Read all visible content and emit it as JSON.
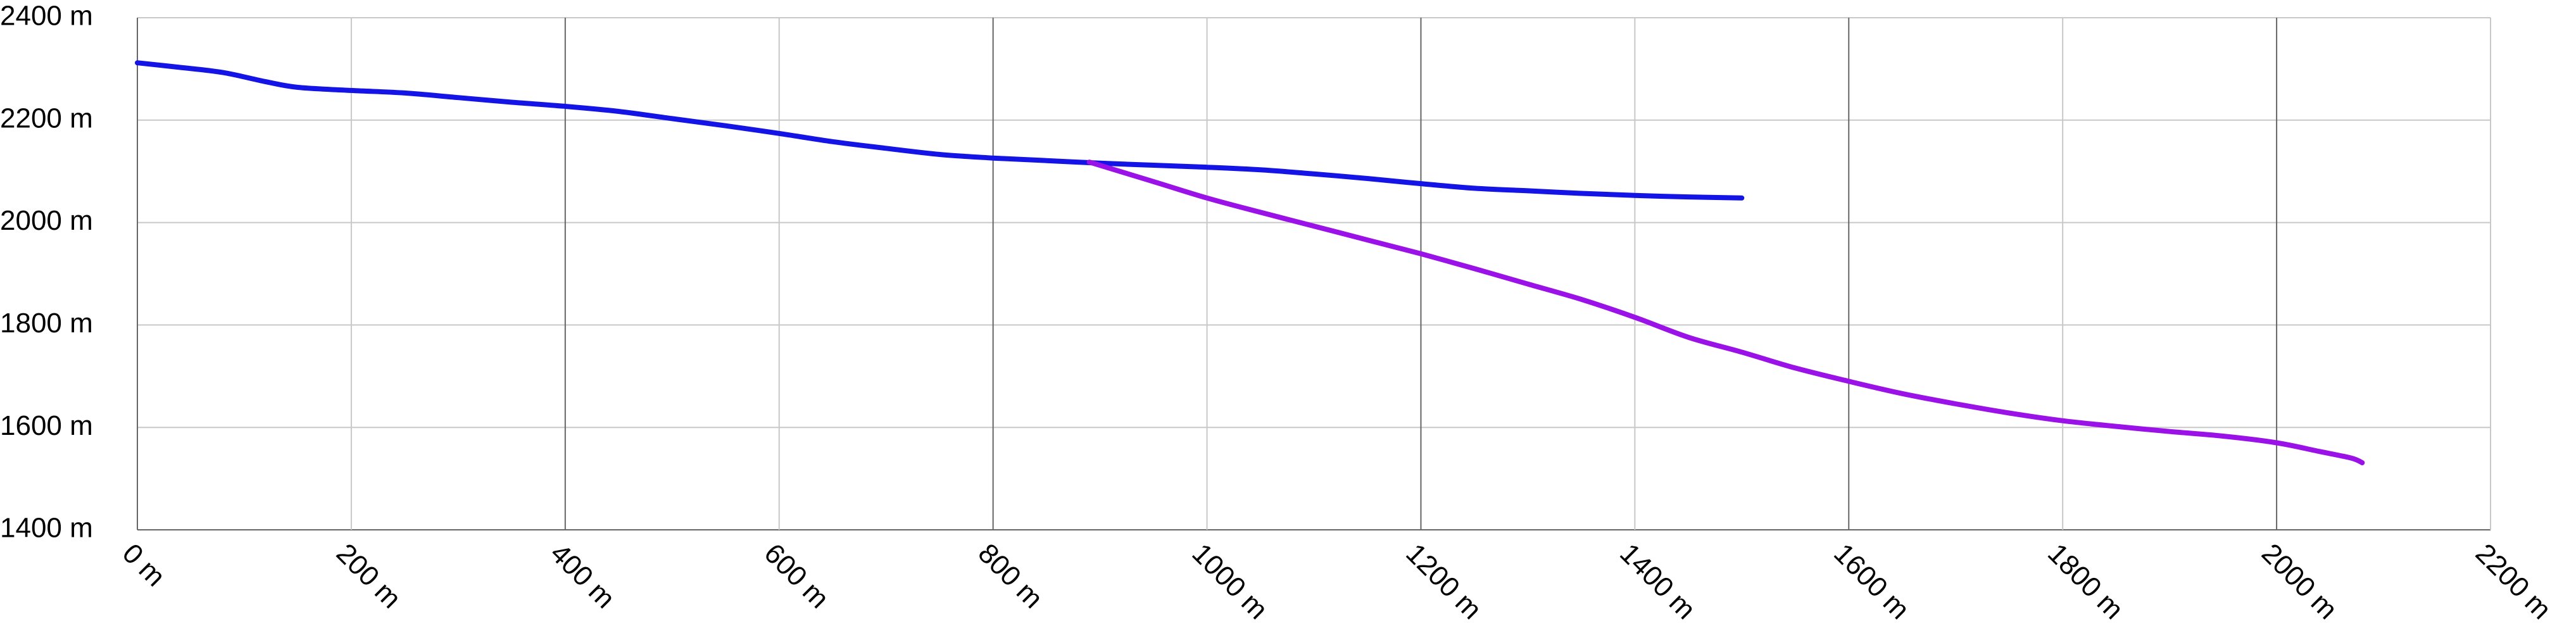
{
  "chart_data": {
    "type": "line",
    "title": "",
    "xlabel": "",
    "ylabel": "",
    "xlim": [
      0,
      2200
    ],
    "ylim": [
      1400,
      2400
    ],
    "x_ticks": [
      0,
      200,
      400,
      600,
      800,
      1000,
      1200,
      1400,
      1600,
      1800,
      2000,
      2200
    ],
    "y_ticks": [
      1400,
      1600,
      1800,
      2000,
      2200,
      2400
    ],
    "x_tick_labels": [
      "0 m",
      "200 m",
      "400 m",
      "600 m",
      "800 m",
      "1000 m",
      "1200 m",
      "1400 m",
      "1600 m",
      "1800 m",
      "2000 m",
      "2200 m"
    ],
    "y_tick_labels": [
      "1400 m",
      "1600 m",
      "1800 m",
      "2000 m",
      "2200 m",
      "2400 m"
    ],
    "grid": true,
    "grid_colors": {
      "minor": "#c8c8c8",
      "major": "#666666"
    },
    "series": [
      {
        "color": "#1414e6",
        "points": [
          [
            0,
            2312
          ],
          [
            40,
            2303
          ],
          [
            80,
            2293
          ],
          [
            120,
            2275
          ],
          [
            150,
            2264
          ],
          [
            200,
            2258
          ],
          [
            250,
            2253
          ],
          [
            300,
            2244
          ],
          [
            350,
            2235
          ],
          [
            400,
            2227
          ],
          [
            450,
            2217
          ],
          [
            500,
            2203
          ],
          [
            550,
            2189
          ],
          [
            600,
            2174
          ],
          [
            650,
            2158
          ],
          [
            700,
            2145
          ],
          [
            750,
            2133
          ],
          [
            800,
            2126
          ],
          [
            850,
            2121
          ],
          [
            900,
            2116
          ],
          [
            950,
            2112
          ],
          [
            1000,
            2108
          ],
          [
            1050,
            2103
          ],
          [
            1100,
            2095
          ],
          [
            1150,
            2086
          ],
          [
            1200,
            2076
          ],
          [
            1250,
            2067
          ],
          [
            1300,
            2062
          ],
          [
            1350,
            2057
          ],
          [
            1400,
            2053
          ],
          [
            1450,
            2050
          ],
          [
            1500,
            2048
          ]
        ]
      },
      {
        "color": "#9a12e8",
        "points": [
          [
            890,
            2118
          ],
          [
            950,
            2080
          ],
          [
            1000,
            2048
          ],
          [
            1050,
            2020
          ],
          [
            1100,
            1993
          ],
          [
            1150,
            1966
          ],
          [
            1200,
            1939
          ],
          [
            1250,
            1910
          ],
          [
            1300,
            1880
          ],
          [
            1350,
            1850
          ],
          [
            1400,
            1815
          ],
          [
            1450,
            1776
          ],
          [
            1500,
            1747
          ],
          [
            1550,
            1716
          ],
          [
            1600,
            1690
          ],
          [
            1650,
            1666
          ],
          [
            1700,
            1646
          ],
          [
            1750,
            1628
          ],
          [
            1800,
            1613
          ],
          [
            1850,
            1602
          ],
          [
            1900,
            1592
          ],
          [
            1950,
            1583
          ],
          [
            2000,
            1570
          ],
          [
            2040,
            1553
          ],
          [
            2070,
            1540
          ],
          [
            2080,
            1531
          ]
        ]
      }
    ]
  }
}
